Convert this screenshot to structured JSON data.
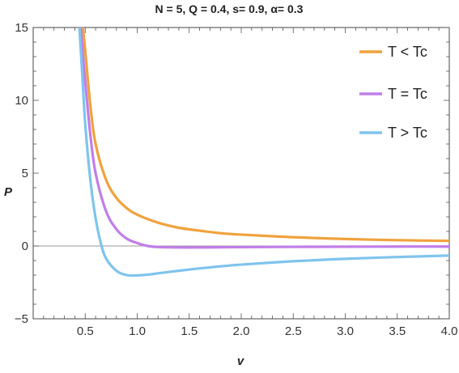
{
  "chart_data": {
    "type": "line",
    "title": "N = 5, Q = 0.4, s= 0.9, α= 0.3",
    "xlabel": "v",
    "ylabel": "P",
    "xlim": [
      0.0,
      4.0
    ],
    "ylim": [
      -5,
      15
    ],
    "xticks": [
      0.5,
      1.0,
      1.5,
      2.0,
      2.5,
      3.0,
      3.5,
      4.0
    ],
    "xtick_labels": [
      "0.5",
      "1.0",
      "1.5",
      "2.0",
      "2.5",
      "3.0",
      "3.5",
      "4.0"
    ],
    "yticks": [
      -5,
      0,
      5,
      10,
      15
    ],
    "ytick_labels": [
      "−5",
      "0",
      "5",
      "10",
      "15"
    ],
    "grid": false,
    "legend_position": "top-right",
    "series": [
      {
        "name": "T < Tc",
        "color": "#f0a23c",
        "x": [
          0.45,
          0.5,
          0.55,
          0.6,
          0.7,
          0.8,
          0.9,
          1.0,
          1.2,
          1.4,
          1.6,
          1.8,
          2.0,
          2.5,
          3.0,
          3.5,
          4.0
        ],
        "y": [
          17.0,
          13.4,
          9.6,
          7.0,
          4.55,
          3.3,
          2.6,
          2.15,
          1.6,
          1.25,
          1.05,
          0.88,
          0.78,
          0.6,
          0.48,
          0.4,
          0.35
        ]
      },
      {
        "name": "T = Tc",
        "color": "#c07ee8",
        "x": [
          0.45,
          0.5,
          0.55,
          0.6,
          0.7,
          0.8,
          0.9,
          1.0,
          1.1,
          1.2,
          1.4,
          1.6,
          1.8,
          2.0,
          2.5,
          3.0,
          3.5,
          4.0
        ],
        "y": [
          15.5,
          11.3,
          7.6,
          5.0,
          2.4,
          1.15,
          0.5,
          0.2,
          0.0,
          -0.07,
          -0.1,
          -0.1,
          -0.09,
          -0.08,
          -0.06,
          -0.05,
          -0.04,
          -0.04
        ]
      },
      {
        "name": "T > Tc",
        "color": "#7fc4ee",
        "x": [
          0.44,
          0.47,
          0.5,
          0.55,
          0.6,
          0.65,
          0.7,
          0.8,
          0.9,
          1.0,
          1.1,
          1.2,
          1.4,
          1.6,
          1.8,
          2.0,
          2.5,
          3.0,
          3.5,
          4.0
        ],
        "y": [
          15.5,
          12.0,
          8.4,
          4.5,
          1.9,
          0.2,
          -0.85,
          -1.7,
          -2.0,
          -2.02,
          -1.97,
          -1.88,
          -1.7,
          -1.54,
          -1.4,
          -1.28,
          -1.05,
          -0.88,
          -0.76,
          -0.66
        ]
      }
    ]
  }
}
